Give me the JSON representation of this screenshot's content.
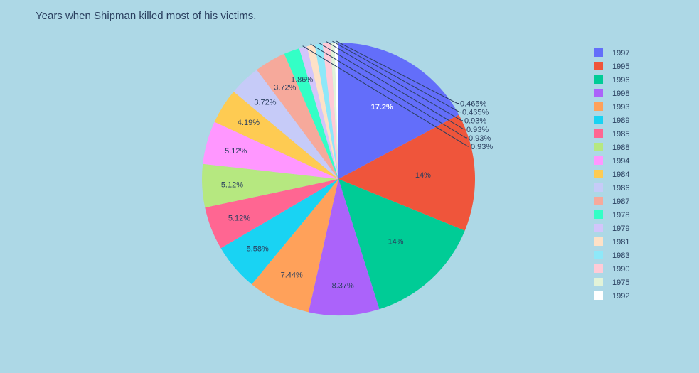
{
  "chart_data": {
    "type": "pie",
    "title": "Years when Shipman killed most of his victims.",
    "categories": [
      "1997",
      "1995",
      "1996",
      "1998",
      "1993",
      "1989",
      "1985",
      "1988",
      "1994",
      "1984",
      "1986",
      "1987",
      "1978",
      "1979",
      "1981",
      "1983",
      "1990",
      "1975",
      "1992"
    ],
    "values": [
      17.2,
      14.0,
      14.0,
      8.37,
      7.44,
      5.58,
      5.12,
      5.12,
      5.12,
      4.19,
      3.72,
      3.72,
      1.86,
      0.93,
      0.93,
      0.93,
      0.93,
      0.465,
      0.465
    ],
    "labels": [
      "17.2%",
      "14%",
      "14%",
      "8.37%",
      "7.44%",
      "5.58%",
      "5.12%",
      "5.12%",
      "5.12%",
      "4.19%",
      "3.72%",
      "3.72%",
      "1.86%",
      "0.93%",
      "0.93%",
      "0.93%",
      "0.93%",
      "0.465%",
      "0.465%"
    ],
    "colors": [
      "#636efa",
      "#EF553B",
      "#00cc96",
      "#ab63fa",
      "#FFA15A",
      "#19d3f3",
      "#FF6692",
      "#B6E880",
      "#FF97FF",
      "#FECB52",
      "#c6cbf8",
      "#f6a99b",
      "#33ffc6",
      "#d3c5fb",
      "#fee1c7",
      "#8ee8f9",
      "#ffcbd7",
      "#e2f3d8",
      "#ffffff"
    ],
    "legend_position": "right",
    "direction": "clockwise",
    "start_angle": "top"
  }
}
